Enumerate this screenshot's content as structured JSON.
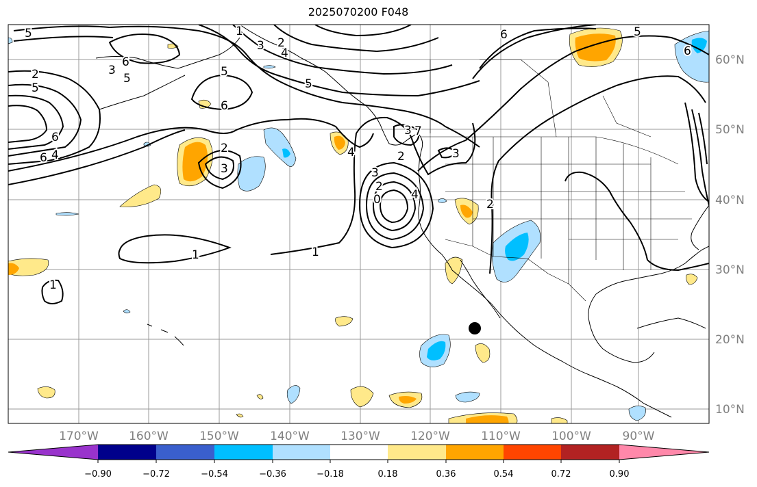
{
  "title": "2025070200 F048",
  "map": {
    "lon_labels": [
      "170°W",
      "160°W",
      "150°W",
      "140°W",
      "130°W",
      "120°W",
      "110°W",
      "100°W",
      "90°W"
    ],
    "lat_labels": [
      "60°N",
      "50°N",
      "40°N",
      "30°N",
      "20°N",
      "10°N"
    ]
  },
  "contour_labels": [
    "5",
    "1",
    "3",
    "2",
    "4",
    "6",
    "3",
    "2",
    "5",
    "6",
    "5",
    "6",
    "2",
    "5",
    "6",
    "4",
    "5",
    "3",
    "2",
    "3",
    "4",
    "7",
    "3",
    "3",
    "2",
    "0",
    "4",
    "1",
    "1",
    "1",
    "2",
    "6",
    "5",
    "6"
  ],
  "colorbar": {
    "ticks": [
      "−0.90",
      "−0.72",
      "−0.54",
      "−0.36",
      "−0.18",
      "0.18",
      "0.36",
      "0.54",
      "0.72",
      "0.90"
    ],
    "colors": [
      "#9933cc",
      "#00008b",
      "#3a5fcd",
      "#00bfff",
      "#b0e0ff",
      "#ffffff",
      "#ffe98a",
      "#ffa500",
      "#ff4500",
      "#b22222",
      "#ff88aa"
    ]
  },
  "colors": {
    "light_blue": "#b0e0ff",
    "blue": "#00bfff",
    "light_yellow": "#ffe98a",
    "orange": "#ffa500"
  }
}
